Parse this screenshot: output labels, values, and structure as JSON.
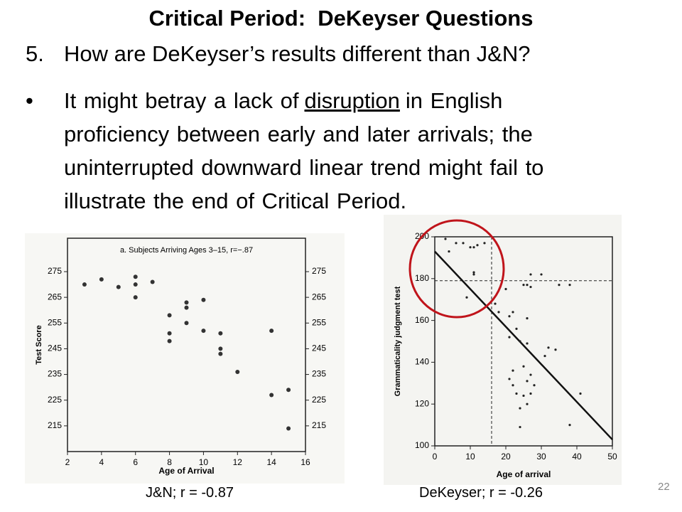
{
  "slide": {
    "title": "Critical Period:  DeKeyser Questions",
    "item_number": "5.",
    "item_text": "How are DeKeyser’s results different than J&N?",
    "bullet": "•",
    "bullet_first_line": [
      "It might betray a lack of",
      "disruption",
      "in English"
    ],
    "bullet_more_lines": [
      "proficiency between early and later arrivals; the",
      "uninterrupted downward linear trend might fail to",
      "illustrate the end of Critical Period."
    ],
    "caption_left": "J&N; r = -0.87",
    "caption_right": "DeKeyser; r = -0.26",
    "page_number": "22"
  },
  "chart_data": [
    {
      "type": "scatter",
      "title": "a. Subjects Arriving Ages 3–15, r=−.87",
      "x_label": "Age of Arrival",
      "y_label": "Test Score",
      "x": [
        3,
        4,
        5,
        6,
        6,
        6,
        7,
        8,
        8,
        8,
        9,
        9,
        9,
        10,
        10,
        11,
        11,
        11,
        12,
        14,
        14,
        15,
        15
      ],
      "y": [
        270,
        272,
        269,
        273,
        270,
        265,
        271,
        258,
        251,
        248,
        263,
        261,
        255,
        264,
        252,
        251,
        245,
        243,
        236,
        252,
        227,
        229,
        214
      ],
      "color": "#333333",
      "xlim": [
        2,
        16
      ],
      "xticks": [
        2,
        4,
        6,
        8,
        10,
        12,
        14,
        16
      ],
      "ylim": [
        205,
        288
      ],
      "yticks": [
        215,
        225,
        235,
        245,
        255,
        265,
        275
      ]
    },
    {
      "type": "scatter",
      "x_label": "Age of arrival",
      "y_label": "Grammaticality judgment test",
      "x": [
        3,
        6,
        8,
        10,
        11,
        12,
        14,
        4,
        11,
        11,
        9,
        27,
        30,
        25,
        26,
        27,
        35,
        38,
        21,
        22,
        26,
        23,
        21,
        24,
        26,
        32,
        34,
        31,
        18,
        22,
        25,
        21,
        27,
        22,
        26,
        28,
        23,
        25,
        27,
        24,
        26,
        24,
        38,
        41,
        20,
        17
      ],
      "y": [
        199,
        197,
        197,
        195,
        195,
        196,
        197,
        193,
        183,
        182,
        171,
        182,
        182,
        177,
        177,
        176,
        177,
        177,
        162,
        164,
        161,
        156,
        152,
        150,
        149,
        147,
        146,
        143,
        164,
        136,
        138,
        132,
        134,
        129,
        131,
        129,
        125,
        124,
        125,
        118,
        120,
        109,
        110,
        125,
        175,
        168
      ],
      "color": "#222222",
      "trend": {
        "x": [
          0,
          50
        ],
        "y": [
          193,
          103
        ]
      },
      "ref_x": 16,
      "ref_y": 179,
      "xlim": [
        0,
        50
      ],
      "xticks": [
        0,
        10,
        20,
        30,
        40,
        50
      ],
      "ylim": [
        100,
        200
      ],
      "yticks": [
        100,
        120,
        140,
        160,
        180,
        200
      ]
    }
  ]
}
